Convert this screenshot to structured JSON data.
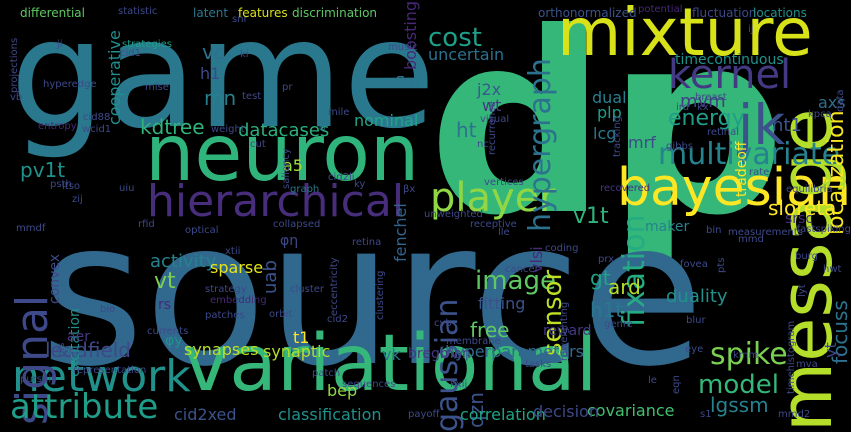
{
  "words": [
    {
      "text": "dp",
      "color": "#35b779",
      "weight": 700
    },
    {
      "text": "source",
      "color": "#31688e",
      "weight": 400
    },
    {
      "text": "game",
      "color": "#2a788e",
      "weight": 400
    },
    {
      "text": "mixture",
      "color": "#d8e219",
      "weight": 400
    },
    {
      "text": "neuron",
      "color": "#2fb47c",
      "weight": 400
    },
    {
      "text": "variational",
      "color": "#35b779",
      "weight": 400
    },
    {
      "text": "hierarchical",
      "color": "#472d7b",
      "weight": 400
    },
    {
      "text": "bayesian",
      "color": "#fde725",
      "weight": 400
    },
    {
      "text": "message",
      "color": "#b5de2b",
      "weight": 400
    },
    {
      "text": "kernel",
      "color": "#443983",
      "weight": 400
    },
    {
      "text": "jk",
      "color": "#3b528b",
      "weight": 400
    },
    {
      "text": "player",
      "color": "#90d743",
      "weight": 400
    },
    {
      "text": "network",
      "color": "#21918c",
      "weight": 400
    },
    {
      "text": "signal",
      "color": "#3e4989",
      "weight": 400
    },
    {
      "text": "attribute",
      "color": "#1f9e89",
      "weight": 400
    },
    {
      "text": "multivariate",
      "color": "#26828e",
      "weight": 400
    },
    {
      "text": "hypergraph",
      "color": "#2c728e",
      "weight": 400
    },
    {
      "text": "gaussian",
      "color": "#3b528b",
      "weight": 400
    },
    {
      "text": "fixation",
      "color": "#25ac82",
      "weight": 400
    },
    {
      "text": "image",
      "color": "#5ec962",
      "weight": 400
    },
    {
      "text": "sensor",
      "color": "#bddf26",
      "weight": 400
    },
    {
      "text": "cost",
      "color": "#1f9e89",
      "weight": 400
    },
    {
      "text": "spike",
      "color": "#7ad151",
      "weight": 400
    },
    {
      "text": "model",
      "color": "#35b779",
      "weight": 400
    },
    {
      "text": "localization",
      "color": "#f6e620",
      "weight": 400
    },
    {
      "text": "sloreta",
      "color": "#fde725",
      "weight": 400
    },
    {
      "text": "datacases",
      "color": "#2ab07f",
      "weight": 400
    },
    {
      "text": "kdtree",
      "color": "#2fb47c",
      "weight": 400
    },
    {
      "text": "leadfield",
      "color": "#3e4989",
      "weight": 400
    },
    {
      "text": "energy",
      "color": "#1f9e89",
      "weight": 400
    },
    {
      "text": "pv1t",
      "color": "#21918c",
      "weight": 400
    },
    {
      "text": "focuss",
      "color": "#2c728e",
      "weight": 400
    },
    {
      "text": "boosting",
      "color": "#482878",
      "weight": 400
    },
    {
      "text": "cooperative",
      "color": "#218f8d",
      "weight": 400
    },
    {
      "text": "ht1",
      "color": "#3b528b",
      "weight": 400
    },
    {
      "text": "ht",
      "color": "#2c728e",
      "weight": 400
    },
    {
      "text": "vc",
      "color": "#2e6f8e",
      "weight": 400
    },
    {
      "text": "mn",
      "color": "#277f8e",
      "weight": 400
    },
    {
      "text": "h1",
      "color": "#3e4989",
      "weight": 400
    },
    {
      "text": "flat",
      "color": "#2b758e",
      "weight": 400
    },
    {
      "text": "uncertain",
      "color": "#2c718e",
      "weight": 400
    },
    {
      "text": "j2x",
      "color": "#38598c",
      "weight": 400
    },
    {
      "text": "wt",
      "color": "#443983",
      "weight": 400
    },
    {
      "text": "mvm",
      "color": "#433e85",
      "weight": 400
    },
    {
      "text": "mrf",
      "color": "#3e4989",
      "weight": 400
    },
    {
      "text": "lcg",
      "color": "#2a788e",
      "weight": 400
    },
    {
      "text": "dual",
      "color": "#277f8e",
      "weight": 400
    },
    {
      "text": "plp",
      "color": "#1f9e89",
      "weight": 400
    },
    {
      "text": "axs",
      "color": "#2e6f8e",
      "weight": 400
    },
    {
      "text": "yt",
      "color": "#3e4989",
      "weight": 400
    },
    {
      "text": "v1t",
      "color": "#2fb47c",
      "weight": 400
    },
    {
      "text": "vt",
      "color": "#7ad151",
      "weight": 400
    },
    {
      "text": "ard",
      "color": "#b5de2b",
      "weight": 400
    },
    {
      "text": "gt",
      "color": "#20a486",
      "weight": 400
    },
    {
      "text": "h1t",
      "color": "#2a788e",
      "weight": 400
    },
    {
      "text": "uab",
      "color": "#3b528b",
      "weight": 400
    },
    {
      "text": "a5",
      "color": "#a0da39",
      "weight": 400
    },
    {
      "text": "t1",
      "color": "#fde725",
      "weight": 400
    },
    {
      "text": "nominal",
      "color": "#21a585",
      "weight": 400
    },
    {
      "text": "fenchel",
      "color": "#32648e",
      "weight": 400
    },
    {
      "text": "activity",
      "color": "#26828e",
      "weight": 400
    },
    {
      "text": "sparse",
      "color": "#e5e419",
      "weight": 400
    },
    {
      "text": "synapses",
      "color": "#bddf26",
      "weight": 400
    },
    {
      "text": "synaptic",
      "color": "#b5de2b",
      "weight": 400
    },
    {
      "text": "free",
      "color": "#5ec962",
      "weight": 400
    },
    {
      "text": "fitting",
      "color": "#3b528b",
      "weight": 400
    },
    {
      "text": "duality",
      "color": "#21918c",
      "weight": 400
    },
    {
      "text": "hyperparameters",
      "color": "#31688e",
      "weight": 400
    },
    {
      "text": "qzn",
      "color": "#3b528b",
      "weight": 400
    },
    {
      "text": "bep",
      "color": "#90d743",
      "weight": 400
    },
    {
      "text": "classification",
      "color": "#21918c",
      "weight": 400
    },
    {
      "text": "correlation",
      "color": "#20a486",
      "weight": 400
    },
    {
      "text": "covariance",
      "color": "#44bf70",
      "weight": 400
    },
    {
      "text": "lgssm",
      "color": "#26828e",
      "weight": 400
    },
    {
      "text": "decision",
      "color": "#3e4989",
      "weight": 400
    },
    {
      "text": "cid2xed",
      "color": "#3b528b",
      "weight": 400
    },
    {
      "text": "vk",
      "color": "#2a788e",
      "weight": 400
    },
    {
      "text": "bregman",
      "color": "#453781",
      "weight": 400
    },
    {
      "text": "excitation",
      "color": "#21918c",
      "weight": 400
    },
    {
      "text": "convex",
      "color": "#3e4989",
      "weight": 400
    },
    {
      "text": "aer",
      "color": "#453781",
      "weight": 400
    },
    {
      "text": "vlsi",
      "color": "#482878",
      "weight": 400
    },
    {
      "text": "maker",
      "color": "#26828e",
      "weight": 400
    },
    {
      "text": "tradeoff",
      "color": "#fde725",
      "weight": 400
    },
    {
      "text": "timecontinuous",
      "color": "#21918c",
      "weight": 400
    },
    {
      "text": "srsc",
      "color": "#472d7b",
      "weight": 400
    },
    {
      "text": "reward",
      "color": "#443983",
      "weight": 400
    },
    {
      "text": "rs",
      "color": "#482878",
      "weight": 400
    },
    {
      "text": "φy",
      "color": "#21918c",
      "weight": 400
    },
    {
      "text": "φη",
      "color": "#3e4989",
      "weight": 400
    },
    {
      "text": "differential",
      "color": "#5ec962",
      "weight": 400
    },
    {
      "text": "statistic",
      "color": "#3e4989",
      "weight": 400
    },
    {
      "text": "latent",
      "color": "#2a788e",
      "weight": 400
    },
    {
      "text": "snr",
      "color": "#3e4989",
      "weight": 400
    },
    {
      "text": "features",
      "color": "#d8e219",
      "weight": 400
    },
    {
      "text": "discrimination",
      "color": "#5ec962",
      "weight": 400
    },
    {
      "text": "orthonormalized",
      "color": "#3b528b",
      "weight": 400
    },
    {
      "text": "potential",
      "color": "#482878",
      "weight": 400
    },
    {
      "text": "fluctuation",
      "color": "#3e4989",
      "weight": 400
    },
    {
      "text": "locations",
      "color": "#21918c",
      "weight": 400
    },
    {
      "text": "strategies",
      "color": "#1f9e89",
      "weight": 400
    },
    {
      "text": "ji",
      "color": "#3e4989",
      "weight": 400
    },
    {
      "text": "cid1",
      "color": "#3e4989",
      "weight": 400
    },
    {
      "text": "music",
      "color": "#3e4989",
      "weight": 400
    },
    {
      "text": "discriminative",
      "color": "#2a788e",
      "weight": 400
    },
    {
      "text": "hyperedge",
      "color": "#3e4989",
      "weight": 400
    },
    {
      "text": "mise",
      "color": "#3e4989",
      "weight": 400
    },
    {
      "text": "entropy",
      "color": "#482878",
      "weight": 400
    },
    {
      "text": "cid88",
      "color": "#3e4989",
      "weight": 400
    },
    {
      "text": "wcid1",
      "color": "#3e4989",
      "weight": 400
    },
    {
      "text": "weight",
      "color": "#3e4989",
      "weight": 400
    },
    {
      "text": "saliency",
      "color": "#3e4989",
      "weight": 400
    },
    {
      "text": "mile",
      "color": "#3e4989",
      "weight": 400
    },
    {
      "text": "graph",
      "color": "#2a788e",
      "weight": 400
    },
    {
      "text": "vertices",
      "color": "#3e4989",
      "weight": 400
    },
    {
      "text": "recovered",
      "color": "#453781",
      "weight": 400
    },
    {
      "text": "equilibria",
      "color": "#3e4989",
      "weight": 400
    },
    {
      "text": "rate",
      "color": "#3e4989",
      "weight": 400
    },
    {
      "text": "retinal",
      "color": "#3e4989",
      "weight": 400
    },
    {
      "text": "breast",
      "color": "#3e4989",
      "weight": 400
    },
    {
      "text": "gibbs",
      "color": "#3e4989",
      "weight": 400
    },
    {
      "text": "visual",
      "color": "#3e4989",
      "weight": 400
    },
    {
      "text": "nc",
      "color": "#3e4989",
      "weight": 400
    },
    {
      "text": "kx",
      "color": "#3e4989",
      "weight": 400
    },
    {
      "text": "ird",
      "color": "#3e4989",
      "weight": 400
    },
    {
      "text": "ij",
      "color": "#3e4989",
      "weight": 400
    },
    {
      "text": "ki",
      "color": "#3e4989",
      "weight": 400
    },
    {
      "text": "pr",
      "color": "#3e4989",
      "weight": 400
    },
    {
      "text": "test",
      "color": "#3e4989",
      "weight": 400
    },
    {
      "text": "cut",
      "color": "#3e4989",
      "weight": 400
    },
    {
      "text": "ltso",
      "color": "#3e4989",
      "weight": 400
    },
    {
      "text": "zij",
      "color": "#3e4989",
      "weight": 400
    },
    {
      "text": "psth",
      "color": "#3e4989",
      "weight": 400
    },
    {
      "text": "uiu",
      "color": "#3e4989",
      "weight": 400
    },
    {
      "text": "cid2li",
      "color": "#3e4989",
      "weight": 400
    },
    {
      "text": "ky",
      "color": "#3e4989",
      "weight": 400
    },
    {
      "text": "βx",
      "color": "#3e4989",
      "weight": 400
    },
    {
      "text": "mmdf",
      "color": "#3e4989",
      "weight": 400
    },
    {
      "text": "rfid",
      "color": "#3e4989",
      "weight": 400
    },
    {
      "text": "optical",
      "color": "#3e4989",
      "weight": 400
    },
    {
      "text": "collapsed",
      "color": "#3e4989",
      "weight": 400
    },
    {
      "text": "unweighted",
      "color": "#3e4989",
      "weight": 400
    },
    {
      "text": "receptive",
      "color": "#3e4989",
      "weight": 400
    },
    {
      "text": "retina",
      "color": "#3e4989",
      "weight": 400
    },
    {
      "text": "lle",
      "color": "#3e4989",
      "weight": 400
    },
    {
      "text": "coding",
      "color": "#3e4989",
      "weight": 400
    },
    {
      "text": "bin",
      "color": "#3e4989",
      "weight": 400
    },
    {
      "text": "measurements",
      "color": "#3e4989",
      "weight": 400
    },
    {
      "text": "fastspiking",
      "color": "#3e4989",
      "weight": 400
    },
    {
      "text": "mmd",
      "color": "#3e4989",
      "weight": 400
    },
    {
      "text": "burg",
      "color": "#3e4989",
      "weight": 400
    },
    {
      "text": "hwt",
      "color": "#3e4989",
      "weight": 400
    },
    {
      "text": "fovea",
      "color": "#3e4989",
      "weight": 400
    },
    {
      "text": "cancer",
      "color": "#3e4989",
      "weight": 400
    },
    {
      "text": "prx",
      "color": "#3e4989",
      "weight": 400
    },
    {
      "text": "xtii",
      "color": "#3e4989",
      "weight": 400
    },
    {
      "text": "strategy",
      "color": "#3e4989",
      "weight": 400
    },
    {
      "text": "embedding",
      "color": "#482878",
      "weight": 400
    },
    {
      "text": "patches",
      "color": "#3e4989",
      "weight": 400
    },
    {
      "text": "bio",
      "color": "#3e4989",
      "weight": 400
    },
    {
      "text": "pls",
      "color": "#3e4989",
      "weight": 400
    },
    {
      "text": "currents",
      "color": "#3e4989",
      "weight": 400
    },
    {
      "text": "cluster",
      "color": "#3e4989",
      "weight": 400
    },
    {
      "text": "orbit",
      "color": "#3e4989",
      "weight": 400
    },
    {
      "text": "cid2",
      "color": "#3e4989",
      "weight": 400
    },
    {
      "text": "membrane",
      "color": "#3e4989",
      "weight": 400
    },
    {
      "text": "cvb",
      "color": "#3e4989",
      "weight": 400
    },
    {
      "text": "genre",
      "color": "#3e4989",
      "weight": 400
    },
    {
      "text": "blur",
      "color": "#3e4989",
      "weight": 400
    },
    {
      "text": "eye",
      "color": "#3e4989",
      "weight": 400
    },
    {
      "text": "kmm",
      "color": "#3e4989",
      "weight": 400
    },
    {
      "text": "mva",
      "color": "#3e4989",
      "weight": 400
    },
    {
      "text": "pursuit",
      "color": "#3e4989",
      "weight": 400
    },
    {
      "text": "representation",
      "color": "#3e4989",
      "weight": 400
    },
    {
      "text": "patch",
      "color": "#3e4989",
      "weight": 400
    },
    {
      "text": "sequences",
      "color": "#3e4989",
      "weight": 400
    },
    {
      "text": "tasks",
      "color": "#3e4989",
      "weight": 400
    },
    {
      "text": "payoff",
      "color": "#3e4989",
      "weight": 400
    },
    {
      "text": "mmd2",
      "color": "#3e4989",
      "weight": 400
    },
    {
      "text": "kxij",
      "color": "#3e4989",
      "weight": 400
    },
    {
      "text": "le",
      "color": "#3e4989",
      "weight": 400
    },
    {
      "text": "vb",
      "color": "#3e4989",
      "weight": 400
    },
    {
      "text": "projections",
      "color": "#3e4989",
      "weight": 400
    },
    {
      "text": "data",
      "color": "#3e4989",
      "weight": 400
    },
    {
      "text": "kpca",
      "color": "#3e4989",
      "weight": 400
    },
    {
      "text": "eccentricity",
      "color": "#3e4989",
      "weight": 400
    },
    {
      "text": "clustering",
      "color": "#3e4989",
      "weight": 400
    },
    {
      "text": "reweighting",
      "color": "#3e4989",
      "weight": 400
    },
    {
      "text": "timehistogram",
      "color": "#3e4989",
      "weight": 400
    },
    {
      "text": "eqn",
      "color": "#3e4989",
      "weight": 400
    },
    {
      "text": "recurrence",
      "color": "#3e4989",
      "weight": 400
    },
    {
      "text": "lyt",
      "color": "#3e4989",
      "weight": 400
    },
    {
      "text": "s1",
      "color": "#3e4989",
      "weight": 400
    },
    {
      "text": "pts",
      "color": "#3e4989",
      "weight": 400
    },
    {
      "text": "tracking",
      "color": "#3e4989",
      "weight": 400
    }
  ]
}
